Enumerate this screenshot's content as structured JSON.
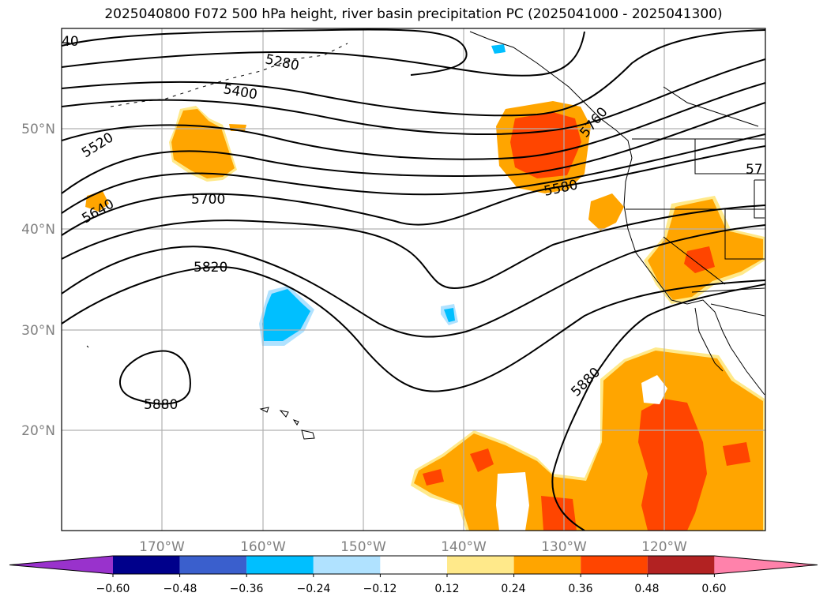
{
  "title": "2025040800 F072 500 hPa height, river basin precipitation PC (2025041000 - 2025041300)",
  "latitude_labels": [
    "50°N",
    "40°N",
    "30°N",
    "20°N"
  ],
  "longitude_labels": [
    "170°W",
    "160°W",
    "150°W",
    "140°W",
    "130°W",
    "120°W"
  ],
  "contour_labels": [
    "40",
    "5280",
    "5400",
    "5520",
    "5640",
    "5700",
    "5820",
    "5880",
    "5580",
    "5760",
    "57",
    "5880"
  ],
  "colorbar": {
    "ticks": [
      "−0.60",
      "−0.48",
      "−0.36",
      "−0.24",
      "−0.12",
      "0.12",
      "0.24",
      "0.36",
      "0.48",
      "0.60"
    ],
    "colors": [
      "#9932cc",
      "#00008b",
      "#3a5fcd",
      "#00bfff",
      "#b0e2ff",
      "#ffffff",
      "#ffe98a",
      "#ffa500",
      "#ff4500",
      "#b22222",
      "#ff82ab"
    ]
  }
}
